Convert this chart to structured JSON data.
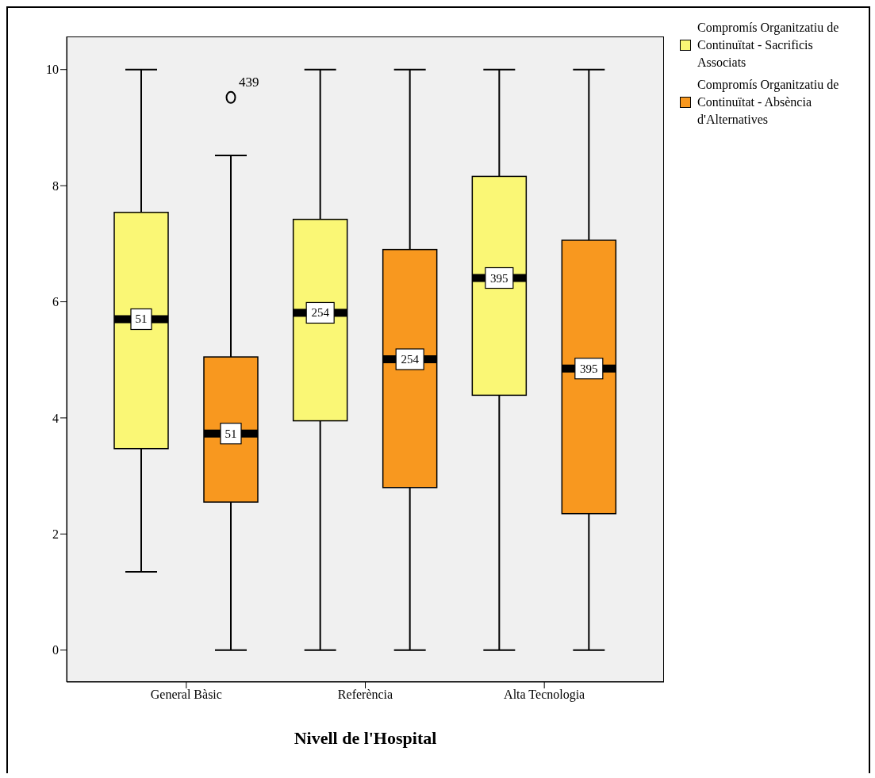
{
  "chart_data": {
    "type": "box",
    "xlabel": "Nivell de l'Hospital",
    "categories": [
      "General Bàsic",
      "Referència",
      "Alta Tecnologia"
    ],
    "series": [
      {
        "name": "Compromís Organitzatiu de Continuïtat - Sacrificis Associats",
        "color": "#faf775",
        "boxes": [
          {
            "low": 1.35,
            "q1": 3.47,
            "median": 5.7,
            "q3": 7.54,
            "high": 10
          },
          {
            "low": 0,
            "q1": 3.95,
            "median": 5.81,
            "q3": 7.42,
            "high": 10
          },
          {
            "low": 0,
            "q1": 4.39,
            "median": 6.41,
            "q3": 8.16,
            "high": 10
          }
        ]
      },
      {
        "name": "Compromís Organitzatiu de Continuïtat - Absència d'Alternatives",
        "color": "#f8981f",
        "boxes": [
          {
            "low": 0,
            "q1": 2.55,
            "median": 3.73,
            "q3": 5.05,
            "high": 8.52,
            "outliers": [
              9.52
            ]
          },
          {
            "low": 0,
            "q1": 2.8,
            "median": 5.01,
            "q3": 6.9,
            "high": 10
          },
          {
            "low": 0,
            "q1": 2.35,
            "median": 4.85,
            "q3": 7.06,
            "high": 10
          }
        ]
      }
    ],
    "ylim": [
      -0.55,
      10.57
    ],
    "yticks": [
      0,
      2,
      4,
      6,
      8,
      10
    ],
    "grid": false,
    "legend": "top right",
    "annotations": [
      "51",
      "51",
      "254",
      "254",
      "395",
      "395",
      "439"
    ]
  }
}
